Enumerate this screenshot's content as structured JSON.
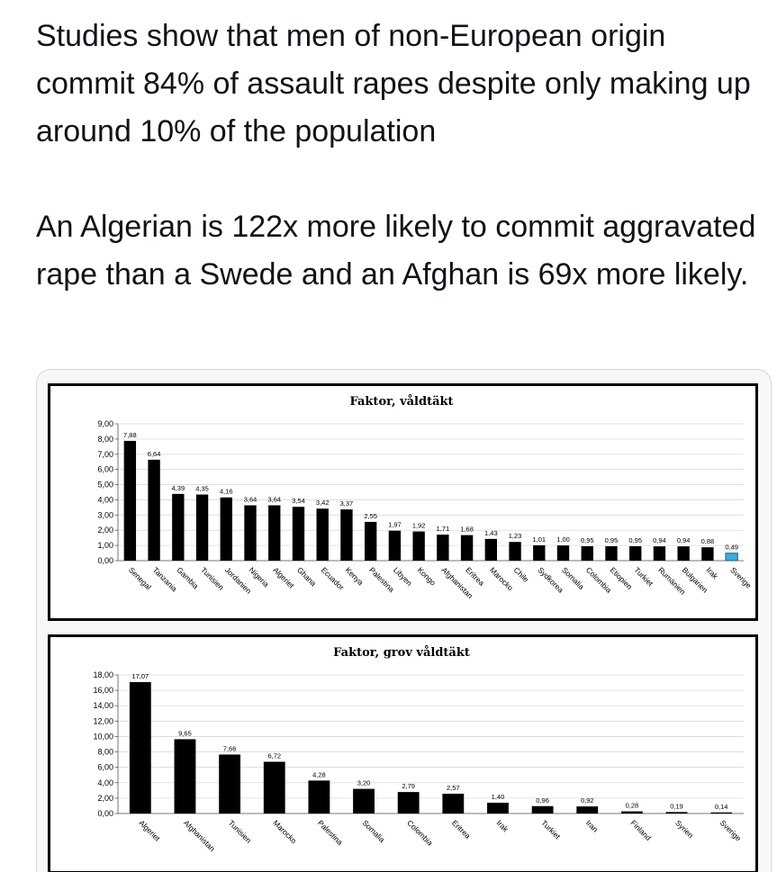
{
  "tweet": {
    "paragraph1": "Studies show that men of non-European origin commit 84% of assault rapes despite only making up around 10% of the population",
    "paragraph2": "An Algerian is 122x more likely to commit aggravated rape than a Swede and an Afghan is 69x more likely."
  },
  "chart_data": [
    {
      "type": "bar",
      "title": "Faktor, våldtäkt",
      "categories": [
        "Senegal",
        "Tanzania",
        "Gambia",
        "Tunisien",
        "Jordanien",
        "Nigeria",
        "Algeriet",
        "Ghana",
        "Ecuador",
        "Kenya",
        "Palestina",
        "Libyen",
        "Kongo",
        "Afghanistan",
        "Eritrea",
        "Marocko",
        "Chile",
        "Sydkorea",
        "Somalia",
        "Colombia",
        "Etiopien",
        "Turkiet",
        "Rumänien",
        "Bulgarien",
        "Irak",
        "Sverige"
      ],
      "values": [
        7.88,
        6.64,
        4.39,
        4.35,
        4.16,
        3.64,
        3.64,
        3.54,
        3.42,
        3.37,
        2.55,
        1.97,
        1.92,
        1.71,
        1.68,
        1.43,
        1.23,
        1.01,
        1.0,
        0.95,
        0.95,
        0.95,
        0.94,
        0.94,
        0.88,
        0.49
      ],
      "value_labels": [
        "7,88",
        "6,64",
        "4,39",
        "4,35",
        "4,16",
        "3,64",
        "3,64",
        "3,54",
        "3,42",
        "3,37",
        "2,55",
        "1,97",
        "1,92",
        "1,71",
        "1,68",
        "1,43",
        "1,23",
        "1,01",
        "1,00",
        "0,95",
        "0,95",
        "0,95",
        "0,94",
        "0,94",
        "0,88",
        "0,49"
      ],
      "yticks": [
        "0,00",
        "1,00",
        "2,00",
        "3,00",
        "4,00",
        "5,00",
        "6,00",
        "7,00",
        "8,00",
        "9,00"
      ],
      "ylim": [
        0,
        9
      ],
      "bar_color": "#000000",
      "highlight_color": "#3fa9d8",
      "highlight_category": "Sverige",
      "grid": true
    },
    {
      "type": "bar",
      "title": "Faktor, grov våldtäkt",
      "categories": [
        "Algeriet",
        "Afghanistan",
        "Tunisien",
        "Marocko",
        "Palestina",
        "Somalia",
        "Colombia",
        "Eritrea",
        "Irak",
        "Turkiet",
        "Iran",
        "Finland",
        "Syrien",
        "Sverige"
      ],
      "values": [
        17.07,
        9.65,
        7.66,
        6.72,
        4.28,
        3.2,
        2.79,
        2.57,
        1.4,
        0.96,
        0.92,
        0.28,
        0.19,
        0.14
      ],
      "value_labels": [
        "17,07",
        "9,65",
        "7,66",
        "6,72",
        "4,28",
        "3,20",
        "2,79",
        "2,57",
        "1,40",
        "0,96",
        "0,92",
        "0,28",
        "0,19",
        "0,14"
      ],
      "yticks": [
        "0,00",
        "2,00",
        "4,00",
        "6,00",
        "8,00",
        "10,00",
        "12,00",
        "14,00",
        "16,00",
        "18,00"
      ],
      "ylim": [
        0,
        18
      ],
      "bar_color": "#000000",
      "grid": true
    }
  ]
}
